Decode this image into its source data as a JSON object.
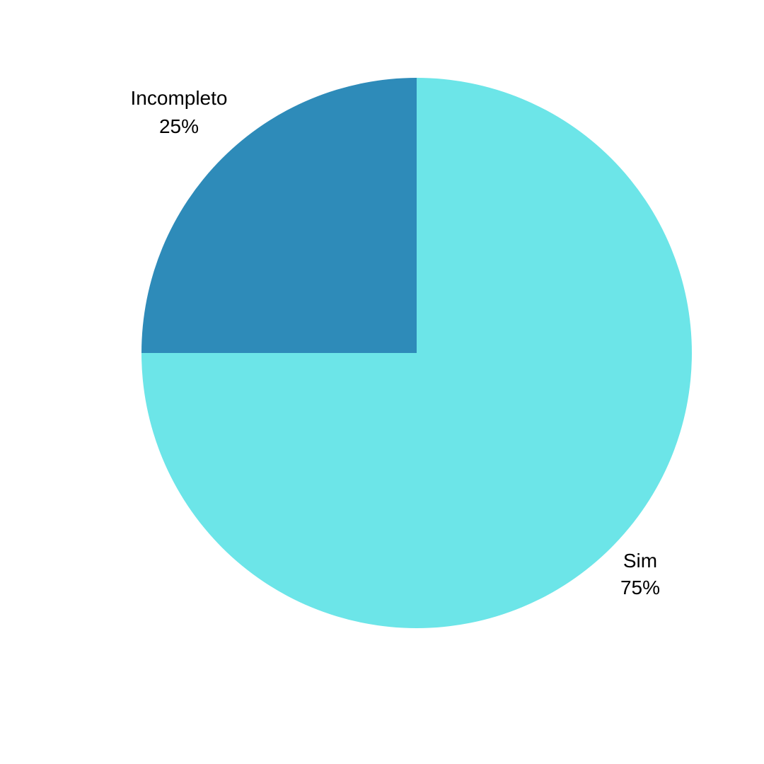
{
  "chart_data": {
    "type": "pie",
    "slices": [
      {
        "label": "Incompleto",
        "percent_label": "25%",
        "value": 25,
        "color": "#2e8bb9"
      },
      {
        "label": "Sim",
        "percent_label": "75%",
        "value": 75,
        "color": "#6ce5e8"
      }
    ]
  }
}
